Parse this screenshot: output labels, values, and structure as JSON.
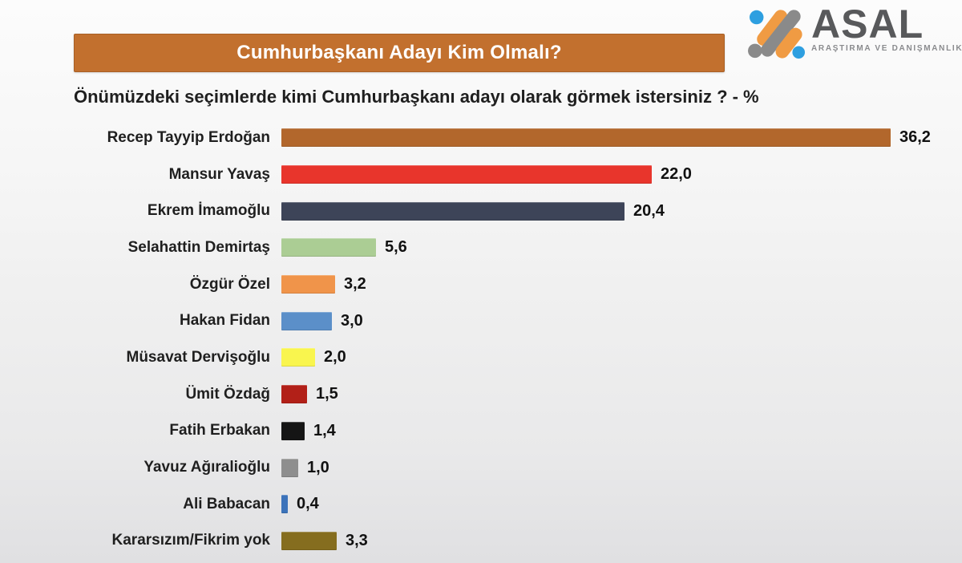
{
  "header": {
    "title": "Cumhurbaşkanı Adayı Kim Olmalı?",
    "banner_color": "#c2702e",
    "title_color": "#ffffff"
  },
  "logo": {
    "name": "ASAL",
    "tagline": "ARAŞTIRMA VE DANIŞMANLIK",
    "colors": {
      "orange": "#f09b43",
      "gray": "#8a8a8a",
      "blue": "#2e9fe0",
      "text": "#58595b"
    }
  },
  "subtitle": "Önümüzdeki seçimlerde kimi Cumhurbaşkanı adayı olarak görmek istersiniz ? - %",
  "chart_data": {
    "type": "bar",
    "orientation": "horizontal",
    "title": "Cumhurbaşkanı Adayı Kim Olmalı?",
    "subtitle": "Önümüzdeki seçimlerde kimi Cumhurbaşkanı adayı olarak görmek istersiniz ? - %",
    "unit": "%",
    "decimal_separator": ",",
    "grid": false,
    "legend": "none",
    "xlim": [
      0,
      38
    ],
    "categories": [
      "Recep Tayyip Erdoğan",
      "Mansur Yavaş",
      "Ekrem İmamoğlu",
      "Selahattin Demirtaş",
      "Özgür Özel",
      "Hakan Fidan",
      "Müsavat Dervişoğlu",
      "Ümit Özdağ",
      "Fatih Erbakan",
      "Yavuz Ağıralioğlu",
      "Ali Babacan",
      "Kararsızım/Fikrim yok"
    ],
    "values": [
      36.2,
      22.0,
      20.4,
      5.6,
      3.2,
      3.0,
      2.0,
      1.5,
      1.4,
      1.0,
      0.4,
      3.3
    ],
    "value_labels": [
      "36,2",
      "22,0",
      "20,4",
      "5,6",
      "3,2",
      "3,0",
      "2,0",
      "1,5",
      "1,4",
      "1,0",
      "0,4",
      "3,3"
    ],
    "bar_colors": [
      "#b2672c",
      "#e8352c",
      "#3d4458",
      "#abcd94",
      "#f0944a",
      "#5b8fc9",
      "#f9f54e",
      "#b22018",
      "#151515",
      "#8e8e8e",
      "#3c73ba",
      "#856d1f"
    ]
  }
}
